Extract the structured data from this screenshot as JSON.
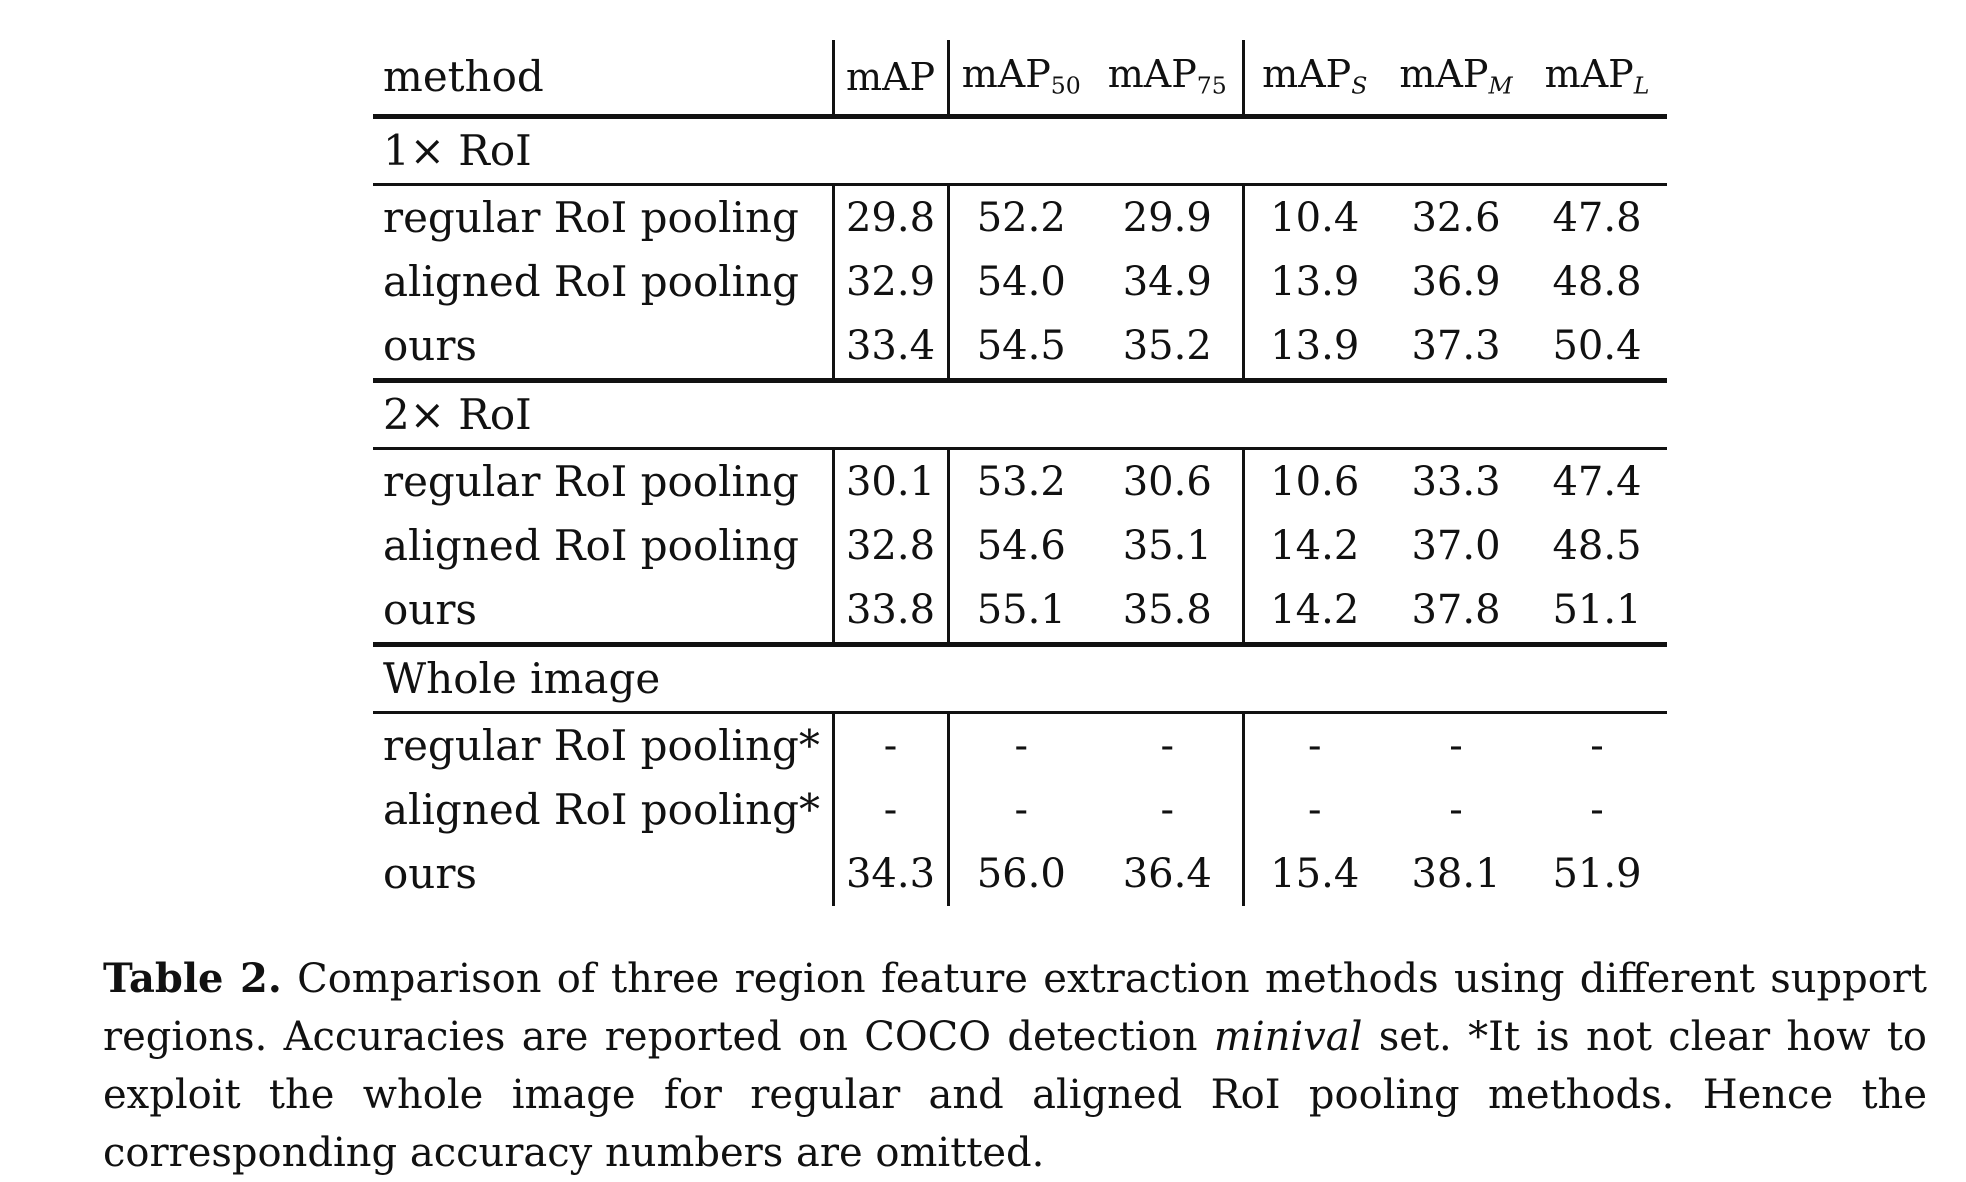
{
  "table": {
    "header": {
      "method": "method",
      "map": "mAP",
      "map50": {
        "base": "mAP",
        "sub": "50"
      },
      "map75": {
        "base": "mAP",
        "sub": "75"
      },
      "maps": {
        "base": "mAP",
        "sub": "S"
      },
      "mapm": {
        "base": "mAP",
        "sub": "M"
      },
      "mapl": {
        "base": "mAP",
        "sub": "L"
      }
    },
    "groups": [
      {
        "label": "1× RoI",
        "rows": [
          {
            "method": "regular RoI pooling",
            "values": [
              "29.8",
              "52.2",
              "29.9",
              "10.4",
              "32.6",
              "47.8"
            ]
          },
          {
            "method": "aligned RoI pooling",
            "values": [
              "32.9",
              "54.0",
              "34.9",
              "13.9",
              "36.9",
              "48.8"
            ]
          },
          {
            "method": "ours",
            "values": [
              "33.4",
              "54.5",
              "35.2",
              "13.9",
              "37.3",
              "50.4"
            ]
          }
        ]
      },
      {
        "label": "2× RoI",
        "rows": [
          {
            "method": "regular RoI pooling",
            "values": [
              "30.1",
              "53.2",
              "30.6",
              "10.6",
              "33.3",
              "47.4"
            ]
          },
          {
            "method": "aligned RoI pooling",
            "values": [
              "32.8",
              "54.6",
              "35.1",
              "14.2",
              "37.0",
              "48.5"
            ]
          },
          {
            "method": "ours",
            "values": [
              "33.8",
              "55.1",
              "35.8",
              "14.2",
              "37.8",
              "51.1"
            ]
          }
        ]
      },
      {
        "label": "Whole image",
        "rows": [
          {
            "method": "regular RoI pooling*",
            "values": [
              "-",
              "-",
              "-",
              "-",
              "-",
              "-"
            ]
          },
          {
            "method": "aligned RoI pooling*",
            "values": [
              "-",
              "-",
              "-",
              "-",
              "-",
              "-"
            ]
          },
          {
            "method": "ours",
            "values": [
              "34.3",
              "56.0",
              "36.4",
              "15.4",
              "38.1",
              "51.9"
            ]
          }
        ]
      }
    ]
  },
  "caption": {
    "label": "Table 2.",
    "text_before": " Comparison of three region feature extraction methods using different support regions. Accuracies are reported on COCO detection ",
    "emphasis": "minival",
    "text_after": " set. *It is not clear how to exploit the whole image for regular and aligned RoI pooling methods. Hence the corresponding accuracy numbers are omitted."
  }
}
